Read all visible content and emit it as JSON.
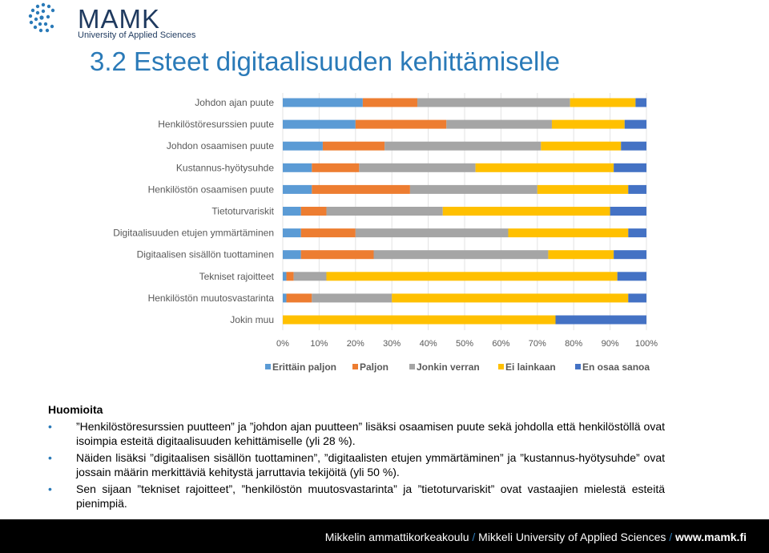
{
  "header": {
    "logo_text": "MAMK",
    "logo_subtitle": "University of Applied Sciences",
    "title": "3.2 Esteet digitaalisuuden kehittämiselle"
  },
  "chart_data": {
    "type": "bar",
    "orientation": "horizontal",
    "stacked": true,
    "categories": [
      "Johdon ajan puute",
      "Henkilöstöresurssien puute",
      "Johdon osaamisen puute",
      "Kustannus-hyötysuhde",
      "Henkilöstön osaamisen puute",
      "Tietoturvariskit",
      "Digitaalisuuden etujen ymmärtäminen",
      "Digitaalisen sisällön tuottaminen",
      "Tekniset rajoitteet",
      "Henkilöstön muutosvastarinta",
      "Jokin muu"
    ],
    "series": [
      {
        "name": "Erittäin paljon",
        "color": "#5b9bd5",
        "values": [
          22,
          20,
          11,
          8,
          8,
          5,
          5,
          5,
          1,
          1,
          0
        ]
      },
      {
        "name": "Paljon",
        "color": "#ed7d31",
        "values": [
          15,
          25,
          17,
          13,
          27,
          7,
          15,
          20,
          2,
          7,
          0
        ]
      },
      {
        "name": "Jonkin verran",
        "color": "#a5a5a5",
        "values": [
          42,
          29,
          43,
          32,
          35,
          32,
          42,
          48,
          9,
          22,
          0
        ]
      },
      {
        "name": "Ei lainkaan",
        "color": "#ffc000",
        "values": [
          18,
          20,
          22,
          38,
          25,
          46,
          33,
          18,
          80,
          65,
          75
        ]
      },
      {
        "name": "En osaa sanoa",
        "color": "#4472c4",
        "values": [
          3,
          6,
          7,
          9,
          5,
          10,
          5,
          9,
          8,
          5,
          25
        ]
      }
    ],
    "xlim": [
      0,
      100
    ],
    "xticks": [
      "0%",
      "10%",
      "20%",
      "30%",
      "40%",
      "50%",
      "60%",
      "70%",
      "80%",
      "90%",
      "100%"
    ],
    "grid": true,
    "legend": "bottom"
  },
  "notes": {
    "heading": "Huomioita",
    "bullet": "•",
    "items": [
      "”Henkilöstöresurssien puutteen” ja ”johdon ajan puutteen” lisäksi osaamisen puute sekä johdolla että henkilöstöllä ovat isoimpia esteitä digitaalisuuden kehittämiselle (yli 28 %).",
      "Näiden lisäksi ”digitaalisen sisällön tuottaminen”, ”digitaalisten etujen ymmärtäminen” ja ”kustannus-hyötysuhde” ovat jossain määrin merkittäviä kehitystä jarruttavia tekijöitä (yli 50 %).",
      "Sen sijaan ”tekniset rajoitteet”, ”henkilöstön muutosvastarinta” ja ”tietoturvariskit” ovat vastaajien mielestä esteitä pienimpiä."
    ]
  },
  "footer": {
    "part1": "Mikkelin ammattikorkeakoulu",
    "sep": " / ",
    "part2": "Mikkeli University of Applied Sciences",
    "part3": "www.mamk.fi"
  }
}
